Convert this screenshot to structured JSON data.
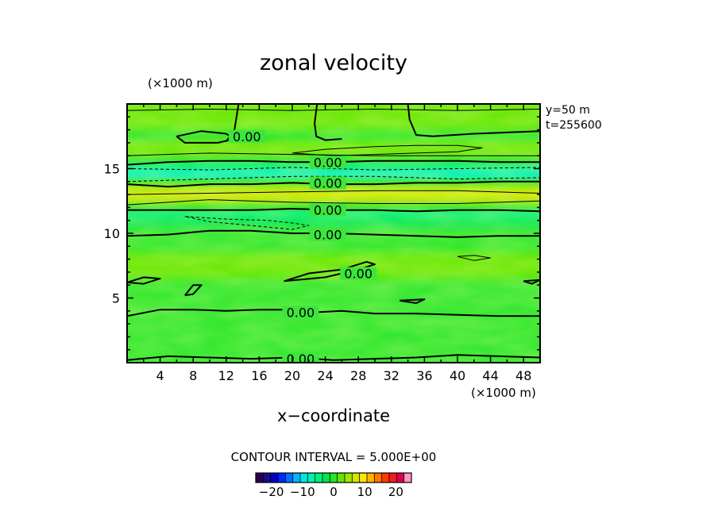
{
  "chart_data": {
    "type": "heatmap",
    "title": "zonal velocity",
    "xlabel": "x−coordinate",
    "x_unit_label": "(×1000 m)",
    "y_unit_label": "(×1000 m)",
    "xlim": [
      0,
      50
    ],
    "ylim": [
      0,
      20
    ],
    "x_ticks": [
      4,
      8,
      12,
      16,
      20,
      24,
      28,
      32,
      36,
      40,
      44,
      48
    ],
    "y_ticks": [
      5,
      10,
      15
    ],
    "info_lines": [
      "y=50 m",
      "t=255600"
    ],
    "contour_interval_text": "CONTOUR INTERVAL = 5.000E+00",
    "contour_labels": [
      "0.00",
      "0.00",
      "0.00",
      "0.00",
      "0.00",
      "0.00",
      "0.00",
      "0.00"
    ],
    "colorbar_ticks": [
      "−20",
      "−10",
      "0",
      "10",
      "20"
    ],
    "colorbar_range": [
      -25,
      25
    ],
    "colorbar_colors": [
      "#2a0050",
      "#1a0a8c",
      "#0000c8",
      "#0028ff",
      "#0070ff",
      "#00b4ff",
      "#00e6e6",
      "#00f0b4",
      "#00f078",
      "#00e650",
      "#28e628",
      "#64e600",
      "#a0e600",
      "#d2e600",
      "#ffe600",
      "#ffb400",
      "#ff7800",
      "#ff3c00",
      "#f01e1e",
      "#dc0050",
      "#ff96c8"
    ],
    "bands": [
      {
        "y": 0,
        "value": 0.5
      },
      {
        "y": 1,
        "value": 1
      },
      {
        "y": 2,
        "value": 0.5
      },
      {
        "y": 3,
        "value": 0.8
      },
      {
        "y": 4,
        "value": 0.5
      },
      {
        "y": 5,
        "value": 1
      },
      {
        "y": 6,
        "value": 0.8
      },
      {
        "y": 7,
        "value": 1.2
      },
      {
        "y": 8,
        "value": 1.5
      },
      {
        "y": 9,
        "value": 1.0
      },
      {
        "y": 10,
        "value": 0.5
      },
      {
        "y": 10.8,
        "value": -2
      },
      {
        "y": 11.5,
        "value": -4
      },
      {
        "y": 12,
        "value": 0.5
      },
      {
        "y": 12.5,
        "value": 4
      },
      {
        "y": 13,
        "value": 7
      },
      {
        "y": 13.5,
        "value": 5
      },
      {
        "y": 14,
        "value": -1
      },
      {
        "y": 14.4,
        "value": -6
      },
      {
        "y": 14.8,
        "value": -8
      },
      {
        "y": 15.2,
        "value": -5
      },
      {
        "y": 15.7,
        "value": 0
      },
      {
        "y": 16.2,
        "value": 3
      },
      {
        "y": 16.8,
        "value": 2
      },
      {
        "y": 17.5,
        "value": 1
      },
      {
        "y": 18.5,
        "value": 2
      },
      {
        "y": 20,
        "value": 1.5
      }
    ],
    "contours": [
      {
        "style": "solid",
        "w": 2,
        "points": [
          [
            0,
            0.2
          ],
          [
            5,
            0.5
          ],
          [
            10,
            0.4
          ],
          [
            15,
            0.3
          ],
          [
            20,
            0.4
          ],
          [
            25,
            0.2
          ],
          [
            30,
            0.3
          ],
          [
            35,
            0.4
          ],
          [
            40,
            0.6
          ],
          [
            45,
            0.5
          ],
          [
            50,
            0.4
          ]
        ]
      },
      {
        "style": "solid",
        "w": 2,
        "points": [
          [
            0,
            3.6
          ],
          [
            4,
            4.1
          ],
          [
            8,
            4.1
          ],
          [
            12,
            4.0
          ],
          [
            16,
            4.1
          ],
          [
            19,
            4.1
          ],
          [
            23,
            3.9
          ],
          [
            26,
            4.0
          ],
          [
            30,
            3.8
          ],
          [
            35,
            3.8
          ],
          [
            40,
            3.7
          ],
          [
            45,
            3.6
          ],
          [
            50,
            3.6
          ]
        ]
      },
      {
        "style": "solid",
        "w": 2,
        "points": [
          [
            0,
            9.8
          ],
          [
            5,
            9.9
          ],
          [
            10,
            10.2
          ],
          [
            15,
            10.2
          ],
          [
            20,
            10.0
          ],
          [
            25,
            10.0
          ],
          [
            30,
            9.9
          ],
          [
            35,
            9.8
          ],
          [
            40,
            9.7
          ],
          [
            45,
            9.8
          ],
          [
            50,
            9.8
          ]
        ]
      },
      {
        "style": "solid",
        "w": 2,
        "points": [
          [
            0,
            11.8
          ],
          [
            5,
            11.8
          ],
          [
            10,
            11.8
          ],
          [
            15,
            11.8
          ],
          [
            20,
            11.9
          ],
          [
            25,
            11.8
          ],
          [
            30,
            11.8
          ],
          [
            35,
            11.7
          ],
          [
            40,
            11.8
          ],
          [
            45,
            11.8
          ],
          [
            50,
            11.7
          ]
        ]
      },
      {
        "style": "solid",
        "w": 2,
        "points": [
          [
            0,
            13.8
          ],
          [
            5,
            13.6
          ],
          [
            10,
            13.8
          ],
          [
            15,
            13.8
          ],
          [
            20,
            13.9
          ],
          [
            25,
            13.8
          ],
          [
            30,
            13.8
          ],
          [
            35,
            13.9
          ],
          [
            40,
            13.9
          ],
          [
            45,
            14.0
          ],
          [
            50,
            14.0
          ]
        ]
      },
      {
        "style": "solid",
        "w": 2,
        "points": [
          [
            0,
            15.3
          ],
          [
            5,
            15.5
          ],
          [
            10,
            15.6
          ],
          [
            15,
            15.6
          ],
          [
            20,
            15.5
          ],
          [
            25,
            15.5
          ],
          [
            30,
            15.6
          ],
          [
            35,
            15.6
          ],
          [
            40,
            15.6
          ],
          [
            45,
            15.5
          ],
          [
            50,
            15.5
          ]
        ]
      },
      {
        "style": "thin",
        "w": 1,
        "points": [
          [
            0,
            12.2
          ],
          [
            10,
            12.6
          ],
          [
            20,
            12.4
          ],
          [
            30,
            12.3
          ],
          [
            40,
            12.3
          ],
          [
            50,
            12.5
          ]
        ]
      },
      {
        "style": "thin",
        "w": 1,
        "points": [
          [
            0,
            13.0
          ],
          [
            10,
            13.1
          ],
          [
            20,
            13.2
          ],
          [
            30,
            13.3
          ],
          [
            40,
            13.3
          ],
          [
            50,
            13.1
          ]
        ]
      },
      {
        "style": "thin",
        "w": 1,
        "points": [
          [
            0,
            16.0
          ],
          [
            10,
            16.2
          ],
          [
            20,
            16.1
          ],
          [
            30,
            16.0
          ],
          [
            40,
            16.0
          ],
          [
            50,
            16.0
          ]
        ]
      },
      {
        "style": "thin",
        "w": 1,
        "points": [
          [
            0,
            19.5
          ],
          [
            10,
            19.6
          ],
          [
            20,
            19.5
          ],
          [
            30,
            19.6
          ],
          [
            40,
            19.5
          ],
          [
            50,
            19.6
          ]
        ]
      },
      {
        "style": "dashed",
        "w": 1,
        "points": [
          [
            0,
            14.0
          ],
          [
            10,
            14.2
          ],
          [
            20,
            14.4
          ],
          [
            30,
            14.4
          ],
          [
            40,
            14.2
          ],
          [
            50,
            14.3
          ]
        ]
      },
      {
        "style": "dashed",
        "w": 1,
        "points": [
          [
            0,
            15.0
          ],
          [
            10,
            14.9
          ],
          [
            20,
            15.1
          ],
          [
            30,
            14.9
          ],
          [
            40,
            15.0
          ],
          [
            50,
            15.1
          ]
        ]
      },
      {
        "style": "dashed",
        "w": 1,
        "points": [
          [
            7,
            11.3
          ],
          [
            12,
            11.1
          ],
          [
            17,
            11.0
          ],
          [
            20,
            10.8
          ],
          [
            22,
            10.6
          ],
          [
            20,
            10.3
          ],
          [
            15,
            10.6
          ],
          [
            10,
            10.9
          ],
          [
            7,
            11.3
          ]
        ]
      },
      {
        "style": "solid",
        "w": 1,
        "points": [
          [
            20,
            16.2
          ],
          [
            24,
            16.5
          ],
          [
            30,
            16.7
          ],
          [
            35,
            16.8
          ],
          [
            40,
            16.8
          ],
          [
            43,
            16.6
          ],
          [
            40,
            16.3
          ],
          [
            35,
            16.2
          ],
          [
            30,
            16.1
          ],
          [
            25,
            16.0
          ],
          [
            20,
            16.2
          ]
        ]
      },
      {
        "style": "solid",
        "w": 2,
        "points": [
          [
            6,
            17.5
          ],
          [
            9,
            17.9
          ],
          [
            12,
            17.7
          ],
          [
            13,
            17.3
          ],
          [
            11,
            17.0
          ],
          [
            7,
            17.0
          ],
          [
            6,
            17.5
          ]
        ]
      },
      {
        "style": "solid",
        "w": 2,
        "points": [
          [
            12,
            17.1
          ],
          [
            13,
            18.0
          ],
          [
            13.5,
            20
          ]
        ]
      },
      {
        "style": "solid",
        "w": 2,
        "points": [
          [
            23,
            20
          ],
          [
            22.7,
            18.5
          ],
          [
            22.9,
            17.5
          ],
          [
            24,
            17.2
          ],
          [
            26,
            17.3
          ]
        ]
      },
      {
        "style": "solid",
        "w": 2,
        "points": [
          [
            34,
            20
          ],
          [
            34.2,
            18.8
          ],
          [
            35,
            17.6
          ],
          [
            37,
            17.5
          ],
          [
            42,
            17.7
          ],
          [
            46,
            17.8
          ],
          [
            50,
            17.9
          ]
        ]
      },
      {
        "style": "solid",
        "w": 1,
        "points": [
          [
            40,
            8.2
          ],
          [
            42,
            8.3
          ],
          [
            44,
            8.1
          ],
          [
            42,
            7.9
          ],
          [
            40,
            8.2
          ]
        ]
      },
      {
        "style": "solid",
        "w": 2,
        "points": [
          [
            0,
            6.2
          ],
          [
            2,
            6.6
          ],
          [
            4,
            6.5
          ],
          [
            2,
            6.1
          ],
          [
            0,
            6.2
          ]
        ]
      },
      {
        "style": "solid",
        "w": 2,
        "points": [
          [
            7,
            5.2
          ],
          [
            8,
            6.0
          ],
          [
            9,
            6.0
          ],
          [
            8,
            5.3
          ],
          [
            7,
            5.2
          ]
        ]
      },
      {
        "style": "solid",
        "w": 2,
        "points": [
          [
            19,
            6.3
          ],
          [
            24,
            6.6
          ],
          [
            28,
            7.2
          ],
          [
            30,
            7.6
          ],
          [
            29,
            7.8
          ],
          [
            26,
            7.2
          ],
          [
            22,
            6.9
          ],
          [
            19,
            6.3
          ]
        ]
      },
      {
        "style": "solid",
        "w": 2,
        "points": [
          [
            33,
            4.8
          ],
          [
            36,
            4.9
          ],
          [
            35,
            4.6
          ],
          [
            33,
            4.8
          ]
        ]
      },
      {
        "style": "solid",
        "w": 2,
        "points": [
          [
            48,
            6.3
          ],
          [
            50,
            6.4
          ],
          [
            49,
            6.1
          ],
          [
            48,
            6.3
          ]
        ]
      }
    ]
  }
}
